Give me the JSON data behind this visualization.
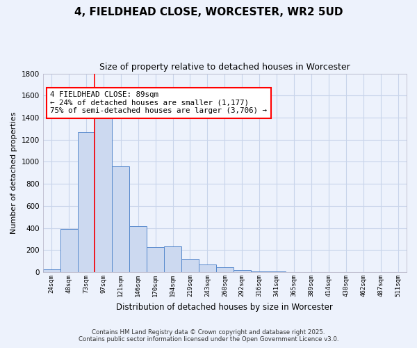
{
  "title_line1": "4, FIELDHEAD CLOSE, WORCESTER, WR2 5UD",
  "title_line2": "Size of property relative to detached houses in Worcester",
  "xlabel": "Distribution of detached houses by size in Worcester",
  "ylabel": "Number of detached properties",
  "bin_labels": [
    "24sqm",
    "48sqm",
    "73sqm",
    "97sqm",
    "121sqm",
    "146sqm",
    "170sqm",
    "194sqm",
    "219sqm",
    "243sqm",
    "268sqm",
    "292sqm",
    "316sqm",
    "341sqm",
    "365sqm",
    "389sqm",
    "414sqm",
    "438sqm",
    "462sqm",
    "487sqm",
    "511sqm"
  ],
  "bar_heights": [
    25,
    390,
    1265,
    1400,
    960,
    415,
    230,
    235,
    120,
    70,
    45,
    18,
    8,
    5,
    3,
    2,
    1,
    1,
    1,
    1,
    1
  ],
  "bar_color": "#ccd9f0",
  "bar_edge_color": "#5588cc",
  "grid_color": "#c8d4ea",
  "background_color": "#edf2fc",
  "plot_bg_color": "#edf2fc",
  "red_line_x": 2.5,
  "annotation_text": "4 FIELDHEAD CLOSE: 89sqm\n← 24% of detached houses are smaller (1,177)\n75% of semi-detached houses are larger (3,706) →",
  "ylim": [
    0,
    1800
  ],
  "yticks": [
    0,
    200,
    400,
    600,
    800,
    1000,
    1200,
    1400,
    1600,
    1800
  ],
  "footnote1": "Contains HM Land Registry data © Crown copyright and database right 2025.",
  "footnote2": "Contains public sector information licensed under the Open Government Licence v3.0."
}
